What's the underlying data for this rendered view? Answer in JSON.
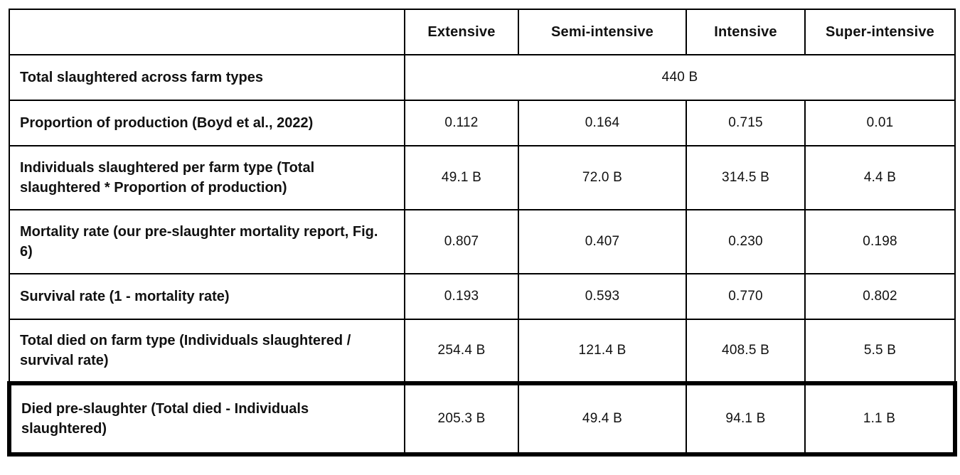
{
  "table": {
    "columns": [
      "",
      "Extensive",
      "Semi-intensive",
      "Intensive",
      "Super-intensive"
    ],
    "total_row": {
      "label": "Total slaughtered across farm types",
      "value": "440 B"
    },
    "rows": [
      {
        "label": "Proportion of production (Boyd et al., 2022)",
        "values": [
          "0.112",
          "0.164",
          "0.715",
          "0.01"
        ]
      },
      {
        "label": "Individuals slaughtered per farm type (Total slaughtered * Proportion of production)",
        "values": [
          "49.1 B",
          "72.0 B",
          "314.5 B",
          "4.4 B"
        ]
      },
      {
        "label": "Mortality rate (our pre-slaughter mortality report, Fig. 6)",
        "values": [
          "0.807",
          "0.407",
          "0.230",
          "0.198"
        ]
      },
      {
        "label": "Survival rate (1 - mortality rate)",
        "values": [
          "0.193",
          "0.593",
          "0.770",
          "0.802"
        ]
      },
      {
        "label": "Total died on farm type (Individuals slaughtered / survival rate)",
        "values": [
          "254.4 B",
          "121.4 B",
          "408.5 B",
          "5.5 B"
        ]
      },
      {
        "label": "Died pre-slaughter (Total died - Individuals slaughtered)",
        "values": [
          "205.3 B",
          "49.4 B",
          "94.1 B",
          "1.1 B"
        ],
        "highlighted": true
      }
    ],
    "colors": {
      "border": "#000000",
      "highlight_border": "#000000",
      "text": "#111111",
      "background": "#ffffff"
    }
  },
  "chart_data": {
    "type": "table",
    "title": "",
    "categories": [
      "Extensive",
      "Semi-intensive",
      "Intensive",
      "Super-intensive"
    ],
    "total_slaughtered_across_farm_types": "440 B",
    "series": [
      {
        "name": "Proportion of production (Boyd et al., 2022)",
        "values": [
          0.112,
          0.164,
          0.715,
          0.01
        ]
      },
      {
        "name": "Individuals slaughtered per farm type (B)",
        "values": [
          49.1,
          72.0,
          314.5,
          4.4
        ]
      },
      {
        "name": "Mortality rate",
        "values": [
          0.807,
          0.407,
          0.23,
          0.198
        ]
      },
      {
        "name": "Survival rate",
        "values": [
          0.193,
          0.593,
          0.77,
          0.802
        ]
      },
      {
        "name": "Total died on farm type (B)",
        "values": [
          254.4,
          121.4,
          408.5,
          5.5
        ]
      },
      {
        "name": "Died pre-slaughter (B)",
        "values": [
          205.3,
          49.4,
          94.1,
          1.1
        ]
      }
    ]
  }
}
